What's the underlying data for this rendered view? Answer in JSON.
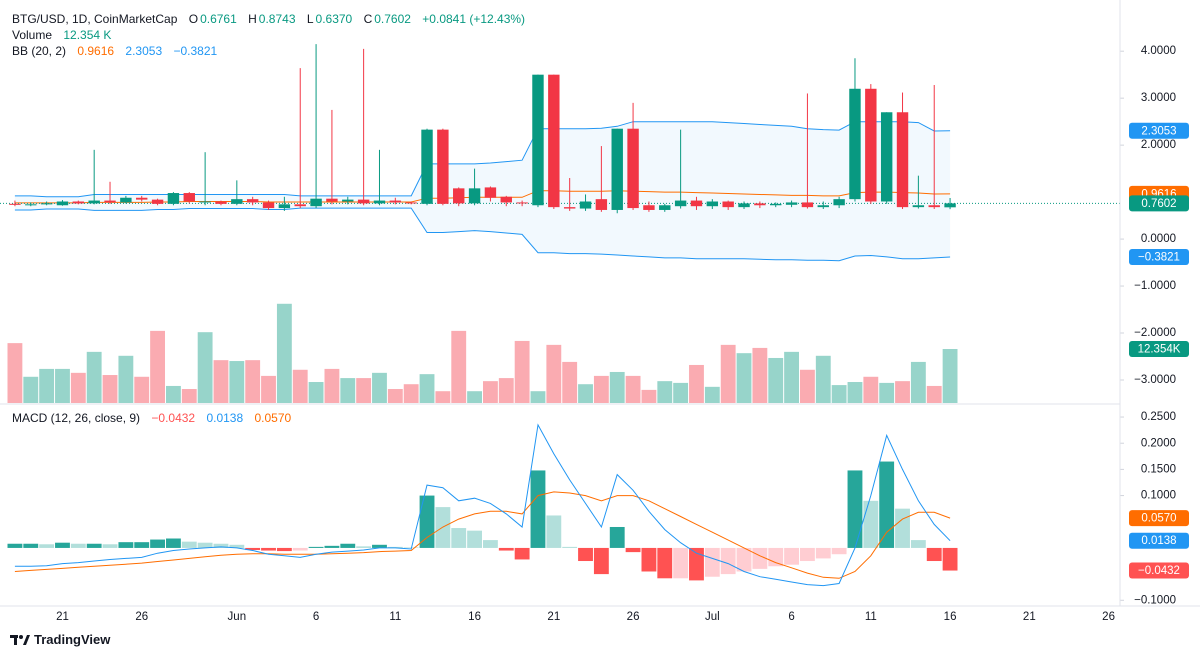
{
  "chart_data": {
    "type": "candlestick",
    "branding": "TradingView",
    "legend": {
      "symbol": "BTG/USD, 1D, CoinMarketCap",
      "fields": [
        {
          "key": "O",
          "value": "0.6761"
        },
        {
          "key": "H",
          "value": "0.8743"
        },
        {
          "key": "L",
          "value": "0.6370"
        },
        {
          "key": "C",
          "value": "0.7602"
        }
      ],
      "change": "+0.0841 (+12.43%)"
    },
    "up_color": "#089981",
    "down_color": "#f23645",
    "categories": [
      null,
      null,
      null,
      "21",
      null,
      null,
      null,
      null,
      "26",
      null,
      null,
      null,
      null,
      null,
      "Jun",
      null,
      null,
      null,
      null,
      "6",
      null,
      null,
      null,
      null,
      "11",
      null,
      null,
      null,
      null,
      "16",
      null,
      null,
      null,
      null,
      "21",
      null,
      null,
      null,
      null,
      "26",
      null,
      null,
      null,
      null,
      "Jul",
      null,
      null,
      null,
      null,
      "6",
      null,
      null,
      null,
      null,
      "11",
      null,
      null,
      null,
      null,
      "16",
      null,
      null,
      null,
      null,
      "21",
      null,
      null,
      null,
      null,
      "26"
    ],
    "open": [
      0.75,
      0.73,
      0.74,
      0.72,
      0.8,
      0.76,
      0.82,
      0.78,
      0.88,
      0.84,
      0.75,
      0.98,
      0.78,
      0.8,
      0.75,
      0.85,
      0.78,
      0.66,
      0.74,
      0.7,
      0.86,
      0.8,
      0.84,
      0.76,
      0.82,
      0.78,
      0.75,
      2.33,
      1.08,
      0.76,
      1.1,
      0.9,
      0.78,
      0.72,
      3.5,
      0.68,
      0.65,
      0.85,
      0.62,
      2.35,
      0.72,
      0.62,
      0.7,
      0.82,
      0.7,
      0.8,
      0.68,
      0.76,
      0.72,
      0.73,
      0.78,
      0.68,
      0.72,
      0.85,
      3.2,
      0.8,
      2.7,
      0.68,
      0.72,
      0.6761,
      null,
      null,
      null,
      null,
      null,
      null,
      null,
      null,
      null,
      null
    ],
    "high": [
      0.82,
      0.78,
      0.8,
      0.83,
      0.82,
      1.9,
      1.22,
      0.92,
      0.92,
      0.86,
      1.0,
      1.0,
      1.85,
      0.82,
      1.25,
      0.9,
      0.82,
      0.9,
      3.64,
      4.15,
      2.75,
      0.9,
      4.05,
      1.9,
      0.88,
      0.8,
      2.35,
      2.35,
      1.1,
      1.5,
      1.12,
      0.92,
      0.82,
      3.5,
      3.5,
      1.3,
      0.95,
      1.98,
      2.35,
      2.9,
      0.8,
      0.75,
      2.33,
      0.9,
      0.85,
      0.82,
      0.8,
      0.8,
      0.78,
      0.82,
      3.1,
      0.8,
      0.9,
      3.85,
      3.3,
      2.7,
      3.12,
      1.35,
      3.28,
      0.8743,
      null,
      null,
      null,
      null,
      null,
      null,
      null,
      null,
      null,
      null
    ],
    "low": [
      0.7,
      0.7,
      0.72,
      0.71,
      0.74,
      0.74,
      0.75,
      0.76,
      0.8,
      0.72,
      0.72,
      0.76,
      0.72,
      0.72,
      0.72,
      0.72,
      0.62,
      0.6,
      0.66,
      0.66,
      0.74,
      0.74,
      0.72,
      0.72,
      0.74,
      0.74,
      0.72,
      0.72,
      0.7,
      0.72,
      0.8,
      0.7,
      0.7,
      0.68,
      0.64,
      0.6,
      0.6,
      0.58,
      0.55,
      0.62,
      0.58,
      0.58,
      0.65,
      0.62,
      0.64,
      0.62,
      0.64,
      0.66,
      0.68,
      0.68,
      0.65,
      0.64,
      0.66,
      0.8,
      0.75,
      0.75,
      0.64,
      0.65,
      0.64,
      0.637,
      null,
      null,
      null,
      null,
      null,
      null,
      null,
      null,
      null,
      null
    ],
    "close": [
      0.73,
      0.74,
      0.76,
      0.8,
      0.76,
      0.82,
      0.78,
      0.88,
      0.84,
      0.75,
      0.98,
      0.8,
      0.8,
      0.75,
      0.85,
      0.78,
      0.66,
      0.74,
      0.7,
      0.86,
      0.8,
      0.84,
      0.76,
      0.82,
      0.78,
      0.76,
      2.33,
      0.75,
      0.76,
      1.08,
      0.88,
      0.78,
      0.76,
      3.5,
      0.68,
      0.65,
      0.8,
      0.62,
      2.35,
      0.66,
      0.62,
      0.72,
      0.82,
      0.7,
      0.8,
      0.68,
      0.76,
      0.72,
      0.75,
      0.78,
      0.68,
      0.72,
      0.85,
      3.2,
      0.8,
      2.7,
      0.68,
      0.72,
      0.68,
      0.7602,
      null,
      null,
      null,
      null,
      null,
      null,
      null,
      null,
      null,
      null
    ],
    "ylim": [
      -3.49,
      5.09
    ],
    "yticks": [
      {
        "value": 4,
        "label": "4.0000"
      },
      {
        "value": 3,
        "label": "3.0000"
      },
      {
        "value": 2,
        "label": "2.0000"
      },
      {
        "value": 0,
        "label": "0.0000"
      },
      {
        "value": -1,
        "label": "−1.0000"
      },
      {
        "value": -2,
        "label": "−2.0000"
      },
      {
        "value": -3,
        "label": "−3.0000"
      }
    ],
    "volume": {
      "name": "Volume",
      "legend_label": "12.354 K",
      "badge_label": "12.354K",
      "up_color": "rgba(8,153,129,0.42)",
      "down_color": "rgba(242,54,69,0.42)",
      "ylim": [
        0,
        92.2
      ],
      "values": [
        13.7,
        6.0,
        7.8,
        7.8,
        6.9,
        11.7,
        6.4,
        10.8,
        6.0,
        16.5,
        3.9,
        3.2,
        16.2,
        9.8,
        9.6,
        9.8,
        6.2,
        22.7,
        7.6,
        4.8,
        7.8,
        5.7,
        5.7,
        6.9,
        3.2,
        4.3,
        6.6,
        2.7,
        16.5,
        2.7,
        5.0,
        5.7,
        14.2,
        2.7,
        13.3,
        9.4,
        4.3,
        6.2,
        7.1,
        6.2,
        3.0,
        5.0,
        4.6,
        8.7,
        3.7,
        13.3,
        11.4,
        12.6,
        10.3,
        11.7,
        7.6,
        10.8,
        4.1,
        4.8,
        6.0,
        4.6,
        5.0,
        9.4,
        3.9,
        12.354,
        null,
        null,
        null,
        null,
        null,
        null,
        null,
        null,
        null,
        null
      ]
    },
    "bollinger": {
      "name": "BB (20, 2)",
      "fill": "rgba(33,150,243,0.06)",
      "basis": {
        "color": "#ff6d00",
        "legend_label": "0.9616",
        "values": [
          0.77,
          0.77,
          0.77,
          0.77,
          0.77,
          0.78,
          0.78,
          0.78,
          0.78,
          0.79,
          0.79,
          0.8,
          0.8,
          0.8,
          0.8,
          0.8,
          0.79,
          0.79,
          0.79,
          0.79,
          0.79,
          0.79,
          0.79,
          0.79,
          0.79,
          0.79,
          0.87,
          0.87,
          0.88,
          0.89,
          0.89,
          0.89,
          0.89,
          1.03,
          1.03,
          1.02,
          1.02,
          1.02,
          1.03,
          1.02,
          1.01,
          1.0,
          1.0,
          0.99,
          0.98,
          0.97,
          0.96,
          0.95,
          0.94,
          0.93,
          0.93,
          0.92,
          0.92,
          0.99,
          1.0,
          1.0,
          0.99,
          0.98,
          0.96,
          0.9616,
          null,
          null,
          null,
          null,
          null,
          null,
          null,
          null,
          null,
          null
        ]
      },
      "upper": {
        "color": "#2196f3",
        "legend_label": "2.3053",
        "values": [
          0.92,
          0.92,
          0.9,
          0.9,
          0.9,
          0.95,
          0.95,
          0.95,
          0.95,
          0.95,
          0.95,
          0.95,
          0.95,
          0.95,
          0.95,
          0.95,
          0.95,
          0.95,
          0.92,
          0.92,
          0.92,
          0.92,
          0.92,
          0.92,
          0.92,
          0.92,
          1.6,
          1.6,
          1.6,
          1.6,
          1.62,
          1.65,
          1.68,
          2.35,
          2.35,
          2.35,
          2.35,
          2.36,
          2.4,
          2.5,
          2.5,
          2.5,
          2.5,
          2.5,
          2.5,
          2.48,
          2.46,
          2.44,
          2.42,
          2.4,
          2.35,
          2.33,
          2.32,
          2.5,
          2.5,
          2.5,
          2.5,
          2.48,
          2.3,
          2.3053,
          null,
          null,
          null,
          null,
          null,
          null,
          null,
          null,
          null,
          null
        ]
      },
      "lower": {
        "color": "#2196f3",
        "legend_label": "−0.3821",
        "values": [
          0.62,
          0.62,
          0.64,
          0.64,
          0.64,
          0.61,
          0.61,
          0.61,
          0.61,
          0.63,
          0.63,
          0.65,
          0.65,
          0.65,
          0.65,
          0.65,
          0.63,
          0.63,
          0.66,
          0.66,
          0.66,
          0.66,
          0.66,
          0.66,
          0.66,
          0.66,
          0.14,
          0.14,
          0.16,
          0.18,
          0.16,
          0.13,
          0.1,
          -0.29,
          -0.29,
          -0.31,
          -0.31,
          -0.32,
          -0.34,
          -0.36,
          -0.38,
          -0.4,
          -0.4,
          -0.42,
          -0.42,
          -0.42,
          -0.42,
          -0.43,
          -0.44,
          -0.44,
          -0.45,
          -0.45,
          -0.46,
          -0.36,
          -0.35,
          -0.38,
          -0.42,
          -0.42,
          -0.4,
          -0.3821,
          null,
          null,
          null,
          null,
          null,
          null,
          null,
          null,
          null,
          null
        ]
      }
    },
    "macd": {
      "name": "MACD (12, 26, close, 9)",
      "ylim": [
        -0.109,
        0.273
      ],
      "yticks": [
        {
          "value": 0.25,
          "label": "0.2500"
        },
        {
          "value": 0.2,
          "label": "0.2000"
        },
        {
          "value": 0.15,
          "label": "0.1500"
        },
        {
          "value": 0.1,
          "label": "0.1000"
        },
        {
          "value": -0.1,
          "label": "−0.1000"
        }
      ],
      "histogram": {
        "legend_label": "−0.0432",
        "colors": {
          "pos_strong": "#26a69a",
          "pos_weak": "#b2dfdb",
          "neg_weak": "#ffcdd2",
          "neg_strong": "#ff5252"
        },
        "values": [
          0.008,
          0.008,
          0.007,
          0.01,
          0.008,
          0.008,
          0.007,
          0.011,
          0.011,
          0.016,
          0.018,
          0.012,
          0.01,
          0.008,
          0.006,
          -0.004,
          -0.005,
          -0.006,
          -0.005,
          0.002,
          0.004,
          0.008,
          0.003,
          0.006,
          0.002,
          0.001,
          0.1,
          0.078,
          0.038,
          0.033,
          0.015,
          -0.005,
          -0.022,
          0.148,
          0.062,
          0.002,
          -0.025,
          -0.05,
          0.04,
          -0.008,
          -0.045,
          -0.058,
          -0.058,
          -0.062,
          -0.055,
          -0.05,
          -0.045,
          -0.04,
          -0.035,
          -0.032,
          -0.025,
          -0.02,
          -0.012,
          0.148,
          0.09,
          0.165,
          0.075,
          0.015,
          -0.025,
          -0.0432,
          null,
          null,
          null,
          null,
          null,
          null,
          null,
          null,
          null,
          null
        ]
      },
      "macd_line": {
        "color": "#2196f3",
        "legend_label": "0.0138",
        "values": [
          -0.035,
          -0.035,
          -0.034,
          -0.03,
          -0.028,
          -0.025,
          -0.022,
          -0.02,
          -0.018,
          -0.01,
          -0.005,
          -0.002,
          0.0,
          0.002,
          0.0,
          -0.005,
          -0.012,
          -0.015,
          -0.018,
          -0.012,
          -0.008,
          -0.006,
          -0.004,
          0.0,
          0.0,
          -0.002,
          0.12,
          0.115,
          0.09,
          0.095,
          0.085,
          0.065,
          0.04,
          0.235,
          0.18,
          0.13,
          0.085,
          0.04,
          0.14,
          0.11,
          0.07,
          0.035,
          0.01,
          -0.01,
          -0.02,
          -0.03,
          -0.045,
          -0.055,
          -0.06,
          -0.065,
          -0.07,
          -0.072,
          -0.068,
          0.0,
          0.1,
          0.215,
          0.15,
          0.09,
          0.045,
          0.0138,
          null,
          null,
          null,
          null,
          null,
          null,
          null,
          null,
          null,
          null
        ]
      },
      "signal": {
        "color": "#ff6d00",
        "legend_label": "0.0570",
        "values": [
          -0.045,
          -0.043,
          -0.041,
          -0.039,
          -0.037,
          -0.035,
          -0.033,
          -0.031,
          -0.029,
          -0.026,
          -0.023,
          -0.02,
          -0.017,
          -0.014,
          -0.012,
          -0.011,
          -0.011,
          -0.012,
          -0.012,
          -0.012,
          -0.011,
          -0.01,
          -0.009,
          -0.007,
          -0.006,
          -0.005,
          0.02,
          0.04,
          0.055,
          0.065,
          0.07,
          0.07,
          0.065,
          0.1,
          0.107,
          0.105,
          0.1,
          0.09,
          0.1,
          0.1,
          0.09,
          0.075,
          0.06,
          0.045,
          0.03,
          0.015,
          0.0,
          -0.015,
          -0.028,
          -0.038,
          -0.048,
          -0.056,
          -0.058,
          -0.045,
          -0.015,
          0.03,
          0.055,
          0.068,
          0.068,
          0.057,
          null,
          null,
          null,
          null,
          null,
          null,
          null,
          null,
          null,
          null
        ]
      }
    }
  }
}
